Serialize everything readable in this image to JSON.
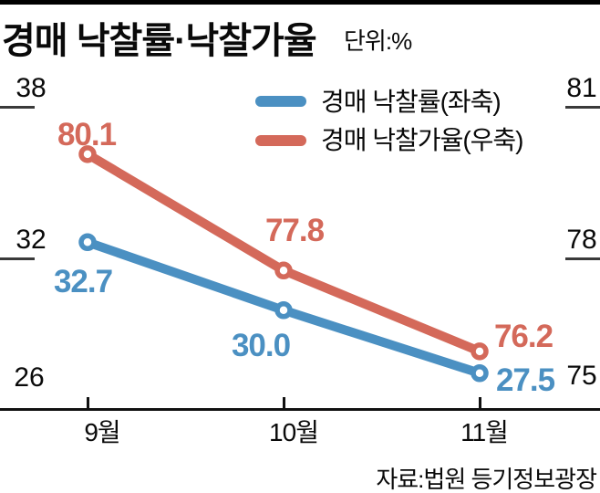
{
  "header": {
    "title": "경매 낙찰률·낙찰가율",
    "unit_label": "단위:%"
  },
  "legend": {
    "items": [
      {
        "label": "경매 낙찰률(좌축)",
        "color": "#4b90c2"
      },
      {
        "label": "경매 낙찰가율(우축)",
        "color": "#d4695a"
      }
    ]
  },
  "source_label": "자료:법원 등기정보광장",
  "chart_data": {
    "type": "line",
    "title": "경매 낙찰률·낙찰가율",
    "unit": "%",
    "categories": [
      "9월",
      "10월",
      "11월"
    ],
    "series": [
      {
        "name": "경매 낙찰률(좌축)",
        "axis": "left",
        "color": "#4b90c2",
        "values": [
          32.7,
          30.0,
          27.5
        ],
        "labels": [
          "32.7",
          "30.0",
          "27.5"
        ]
      },
      {
        "name": "경매 낙찰가율(우축)",
        "axis": "right",
        "color": "#d4695a",
        "values": [
          80.1,
          77.8,
          76.2
        ],
        "labels": [
          "80.1",
          "77.8",
          "76.2"
        ]
      }
    ],
    "left_axis": {
      "range": [
        26,
        38
      ],
      "tick_labels": [
        "38",
        "32",
        "26"
      ]
    },
    "right_axis": {
      "range": [
        75,
        81
      ],
      "tick_labels": [
        "81",
        "78",
        "75"
      ]
    },
    "legend_position": "top-center",
    "grid": false
  }
}
